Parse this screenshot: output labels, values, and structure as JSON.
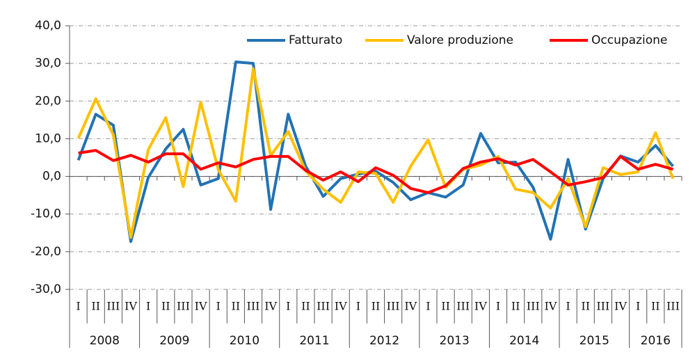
{
  "chart_data": {
    "type": "line",
    "categories": [
      "I",
      "II",
      "III",
      "IV",
      "I",
      "II",
      "III",
      "IV",
      "I",
      "II",
      "III",
      "IV",
      "I",
      "II",
      "III",
      "IV",
      "I",
      "II",
      "III",
      "IV",
      "I",
      "II",
      "III",
      "IV",
      "I",
      "II",
      "III",
      "IV",
      "I",
      "II",
      "III",
      "IV",
      "I",
      "II",
      "III"
    ],
    "years": [
      "2008",
      "2009",
      "2010",
      "2011",
      "2012",
      "2013",
      "2014",
      "2015",
      "2016"
    ],
    "series": [
      {
        "name": "Fatturato",
        "color": "#2272b4",
        "values": [
          4.3,
          16.5,
          13.6,
          -17.3,
          -0.3,
          7.3,
          12.5,
          -2.3,
          -0.6,
          30.4,
          30.0,
          -8.8,
          16.5,
          2.7,
          -5.3,
          -0.6,
          0.6,
          1.4,
          -1.6,
          -6.2,
          -4.3,
          -5.5,
          -2.3,
          11.4,
          3.6,
          3.8,
          -2.9,
          -16.7,
          4.5,
          -14.0,
          -0.6,
          5.4,
          3.8,
          8.2,
          2.7
        ]
      },
      {
        "name": "Valore produzione",
        "color": "#ffc000",
        "values": [
          10.1,
          20.6,
          11.0,
          -16.2,
          7.1,
          15.6,
          -2.7,
          19.7,
          1.8,
          -6.6,
          28.6,
          5.5,
          11.9,
          1.4,
          -3.4,
          -6.9,
          1.2,
          0.8,
          -6.9,
          2.7,
          9.7,
          -2.9,
          1.9,
          3.0,
          5.3,
          -3.4,
          -4.3,
          -8.4,
          -0.6,
          -13.4,
          2.3,
          0.5,
          1.2,
          11.6,
          -0.6
        ]
      },
      {
        "name": "Occupazione",
        "color": "#ff0000",
        "values": [
          6.2,
          6.9,
          4.2,
          5.6,
          3.8,
          6.0,
          6.0,
          1.9,
          3.6,
          2.5,
          4.5,
          5.3,
          5.3,
          1.6,
          -1.0,
          1.2,
          -1.4,
          2.3,
          0.3,
          -3.2,
          -4.3,
          -2.5,
          2.1,
          3.8,
          4.7,
          3.0,
          4.5,
          1.2,
          -2.3,
          -1.4,
          -0.3,
          5.3,
          1.9,
          3.2,
          1.9
        ]
      }
    ],
    "ylim": [
      -30,
      40
    ],
    "yticks": [
      {
        "value": -30,
        "label": "-30,0"
      },
      {
        "value": -20,
        "label": "-20,0"
      },
      {
        "value": -10,
        "label": "-10,0"
      },
      {
        "value": 0,
        "label": "0,0"
      },
      {
        "value": 10,
        "label": "10,0"
      },
      {
        "value": 20,
        "label": "20,0"
      },
      {
        "value": 30,
        "label": "30,0"
      },
      {
        "value": 40,
        "label": "40,0"
      }
    ],
    "grid": true,
    "legend": "top-right"
  }
}
